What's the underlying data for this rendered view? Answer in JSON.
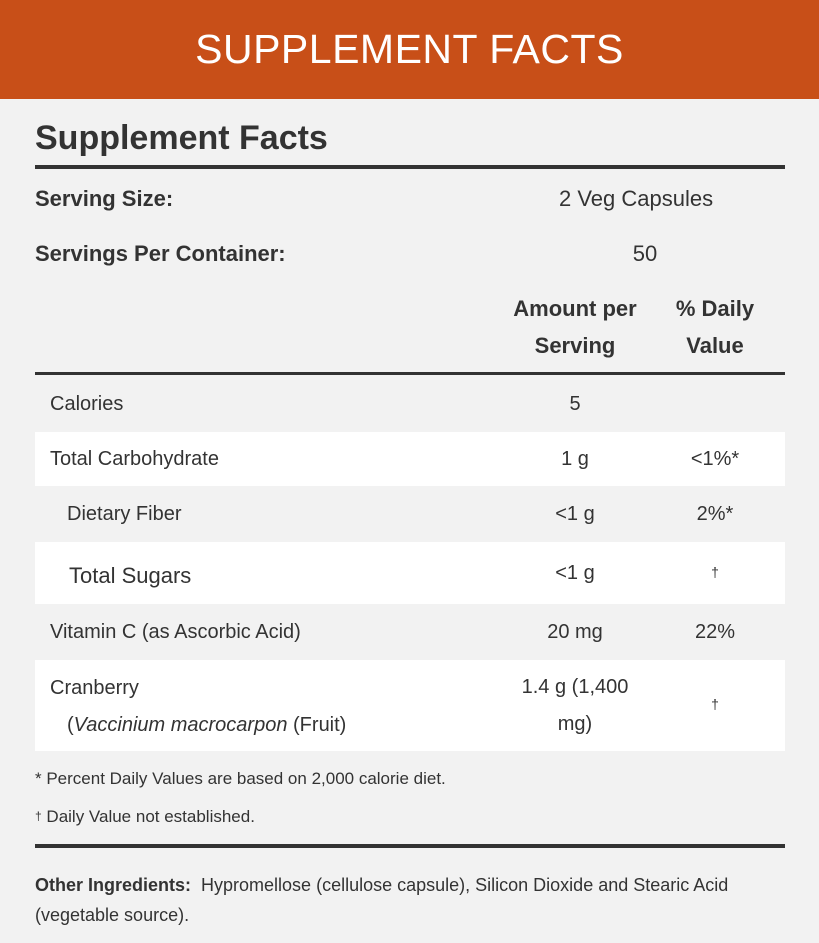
{
  "banner": {
    "title": "SUPPLEMENT FACTS",
    "color": "#c84f18"
  },
  "facts": {
    "heading": "Supplement Facts",
    "serving_size_label": "Serving Size:",
    "serving_size_value": "2 Veg Capsules",
    "servings_label": "Servings Per Container:",
    "servings_value": "50",
    "col_amount_line1": "Amount per",
    "col_amount_line2": "Serving",
    "col_dv_line1": "% Daily",
    "col_dv_line2": "Value",
    "rows": [
      {
        "name": "Calories",
        "amount": "5",
        "dv": ""
      },
      {
        "name": "Total Carbohydrate",
        "amount": "1 g",
        "dv": "<1%*"
      },
      {
        "name": "Dietary Fiber",
        "amount": "<1 g",
        "dv": "2%*"
      },
      {
        "name": "Total Sugars",
        "amount": "<1 g",
        "dv": "†"
      },
      {
        "name": "Vitamin C (as Ascorbic Acid)",
        "amount": "20 mg",
        "dv": "22%"
      },
      {
        "name": "Cranberry",
        "name_sub_latin": "Vaccinium macrocarpon",
        "name_sub_rest": " (Fruit)",
        "name_sub_open": "(",
        "amount_line1": "1.4 g (1,400",
        "amount_line2": "mg)",
        "dv": "†"
      }
    ],
    "footnote_percent": "* Percent Daily Values are based on 2,000 calorie diet.",
    "footnote_dagger_mark": "†",
    "footnote_dagger_text": " Daily Value not established.",
    "other_label": "Other Ingredients:",
    "other_text": "Hypromellose (cellulose capsule), Silicon Dioxide and Stearic Acid (vegetable source)."
  }
}
